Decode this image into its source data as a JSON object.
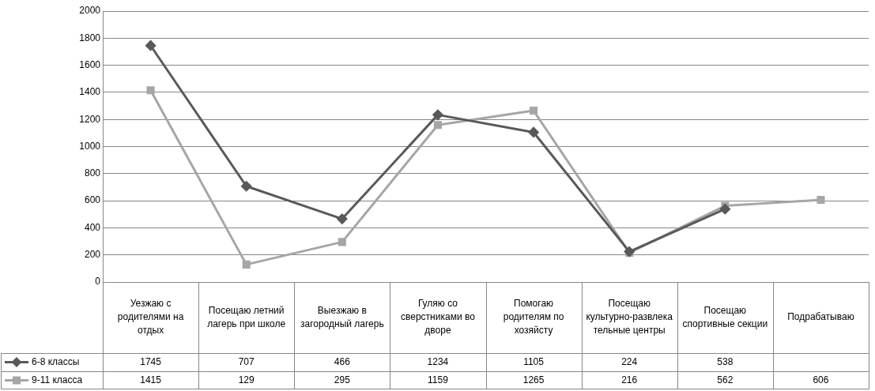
{
  "chart_data": {
    "type": "line",
    "categories": [
      "Уезжаю с родителями на отдых",
      "Посещаю летний лагерь при школе",
      "Выезжаю в загородный лагерь",
      "Гуляю со сверстниками во дворе",
      "Помогаю родителям по хозяйсту",
      "Посещаю культурно-развлекательные центры",
      "Посещаю спортивные секции",
      "Подрабатываю"
    ],
    "series": [
      {
        "name": "6-8 классы",
        "color": "#595959",
        "marker": "diamond",
        "values": [
          1745,
          707,
          466,
          1234,
          1105,
          224,
          538,
          null
        ]
      },
      {
        "name": "9-11 класса",
        "color": "#a6a6a6",
        "marker": "square",
        "values": [
          1415,
          129,
          295,
          1159,
          1265,
          216,
          562,
          606
        ]
      }
    ],
    "ylim": [
      0,
      2000
    ],
    "yticks": [
      0,
      200,
      400,
      600,
      800,
      1000,
      1200,
      1400,
      1600,
      1800,
      2000
    ],
    "grid": "y",
    "legend": "bottom left",
    "data_labels": true
  }
}
